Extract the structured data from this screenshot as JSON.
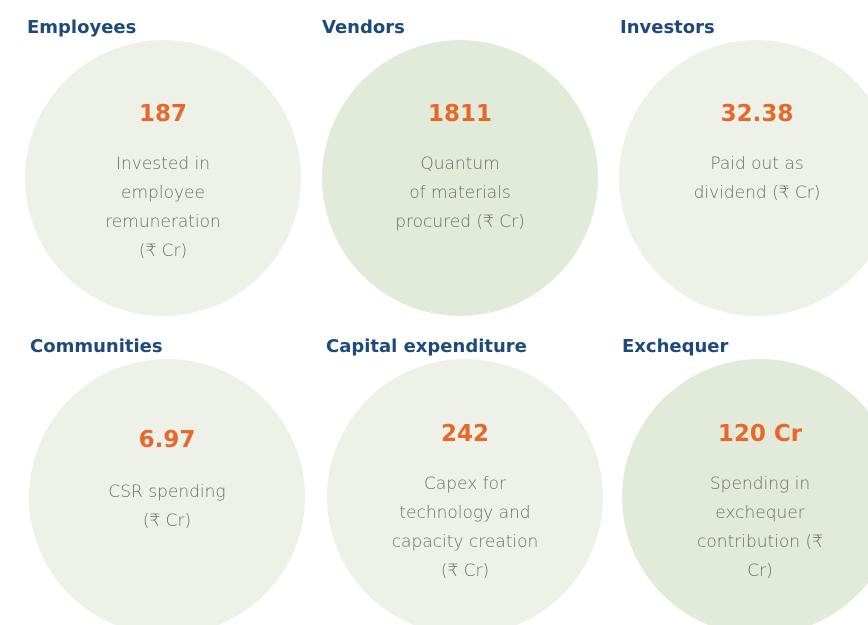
{
  "items": [
    {
      "heading": "Employees",
      "value": 187,
      "description": [
        "Invested in",
        "employee",
        "remuneration",
        "(₹ Cr)"
      ]
    },
    {
      "heading": "Vendors",
      "value": 1811,
      "description": [
        "Quantum",
        "of materials",
        "procured (₹ Cr)"
      ]
    },
    {
      "heading": "Investors",
      "value": 32.38,
      "description": [
        "Paid out as",
        "dividend (₹ Cr)"
      ]
    },
    {
      "heading": "Communities",
      "value": 6.97,
      "description": [
        "CSR spending",
        "(₹ Cr)"
      ]
    },
    {
      "heading": "Capital expenditure",
      "value": 242,
      "description": [
        "Capex  for",
        "technology and",
        "capacity creation",
        "(₹ Cr)"
      ]
    },
    {
      "heading": "Exchequer",
      "value": "120 Cr",
      "description": [
        "Spending in",
        "exchequer",
        "contribution (₹",
        "Cr)"
      ]
    }
  ]
}
